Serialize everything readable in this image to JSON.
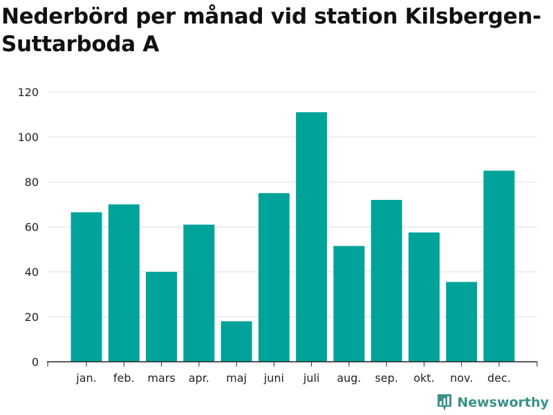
{
  "colors": {
    "bar": "#00a39a",
    "grid": "#dddddd",
    "axis": "#222222",
    "brand": "#3a9188"
  },
  "brand": {
    "name": "Newsworthy",
    "icon": "bar-chart-speech-bubble-icon"
  },
  "chart_data": {
    "type": "bar",
    "title": "Nederbörd per månad vid station Kilsbergen-Suttarboda A",
    "xlabel": "",
    "ylabel": "",
    "categories": [
      "jan.",
      "feb.",
      "mars",
      "apr.",
      "maj",
      "juni",
      "juli",
      "aug.",
      "sep.",
      "okt.",
      "nov.",
      "dec."
    ],
    "values": [
      66.5,
      70,
      40,
      61,
      18,
      75,
      111,
      51.5,
      72,
      57.5,
      35.5,
      85
    ],
    "ylim": [
      0,
      120
    ],
    "yticks": [
      0,
      20,
      40,
      60,
      80,
      100,
      120
    ],
    "grid": true,
    "legend": "none"
  }
}
